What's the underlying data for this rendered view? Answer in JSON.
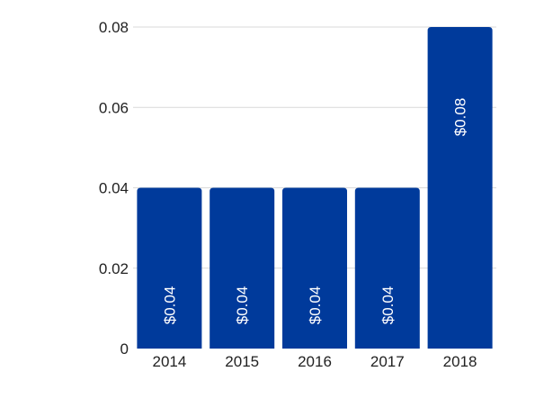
{
  "chart_data": {
    "type": "bar",
    "categories": [
      "2014",
      "2015",
      "2016",
      "2017",
      "2018"
    ],
    "values": [
      0.04,
      0.04,
      0.04,
      0.04,
      0.08
    ],
    "data_labels": [
      "$0.04",
      "$0.04",
      "$0.04",
      "$0.04",
      "$0.08"
    ],
    "yticks": [
      "0",
      "0.02",
      "0.04",
      "0.06",
      "0.08"
    ],
    "ylim": [
      0,
      0.08
    ],
    "grid": true,
    "legend": "none",
    "bar_color": "#003a9b",
    "title": "",
    "xlabel": "",
    "ylabel": ""
  }
}
